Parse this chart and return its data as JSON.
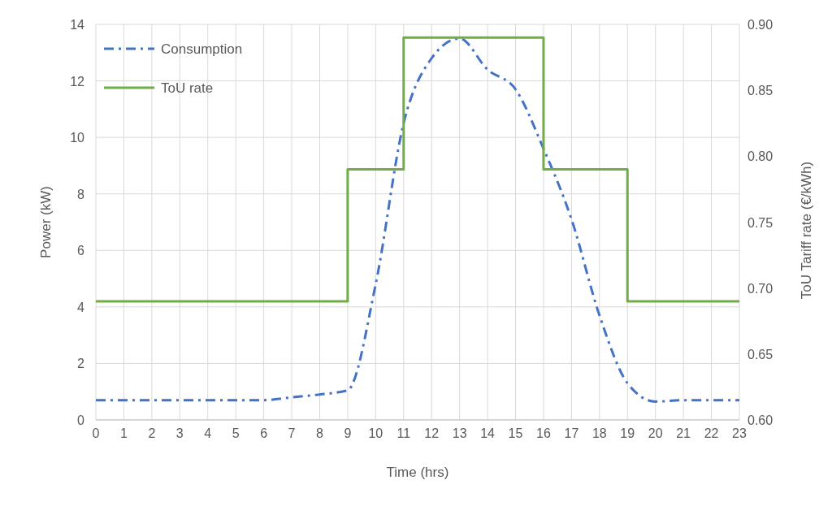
{
  "chart_data": {
    "type": "line",
    "xlabel": "Time (hrs)",
    "ylabel": "Power (kW)",
    "y2label": "ToU Tariff rate (€/kWh)",
    "xlim": [
      0,
      23
    ],
    "xticks": [
      0,
      1,
      2,
      3,
      4,
      5,
      6,
      7,
      8,
      9,
      10,
      11,
      12,
      13,
      14,
      15,
      16,
      17,
      18,
      19,
      20,
      21,
      22,
      23
    ],
    "ylim": [
      0,
      14
    ],
    "yticks": [
      0,
      2,
      4,
      6,
      8,
      10,
      12,
      14
    ],
    "y2lim": [
      0.6,
      0.9
    ],
    "y2ticks": [
      {
        "value": 0.6,
        "label": "0.60"
      },
      {
        "value": 0.65,
        "label": "0.65"
      },
      {
        "value": 0.7,
        "label": "0.70"
      },
      {
        "value": 0.75,
        "label": "0.75"
      },
      {
        "value": 0.8,
        "label": "0.80"
      },
      {
        "value": 0.85,
        "label": "0.85"
      },
      {
        "value": 0.9,
        "label": "0.90"
      }
    ],
    "grid": true,
    "legend": "top left",
    "series": [
      {
        "name": "Consumption",
        "type": "line",
        "color": "#4472c4",
        "line_style": "dashed",
        "x": [
          0,
          1,
          2,
          3,
          4,
          5,
          6,
          7,
          8,
          9,
          10,
          11,
          12,
          13,
          14,
          15,
          16,
          17,
          18,
          19,
          20,
          21,
          22,
          23
        ],
        "values": [
          0.7,
          0.7,
          0.7,
          0.7,
          0.7,
          0.7,
          0.7,
          0.8,
          0.9,
          1.05,
          4.8,
          10.5,
          12.8,
          13.5,
          12.4,
          11.7,
          9.6,
          7.1,
          3.7,
          1.3,
          0.65,
          0.7,
          0.7,
          0.7
        ]
      },
      {
        "name": "ToU rate",
        "type": "step",
        "axis": "y2",
        "color": "#70ad47",
        "line_style": "solid",
        "x": [
          0,
          9,
          11,
          16,
          19,
          23
        ],
        "values": [
          0.69,
          0.79,
          0.89,
          0.79,
          0.69,
          0.69
        ]
      }
    ]
  }
}
